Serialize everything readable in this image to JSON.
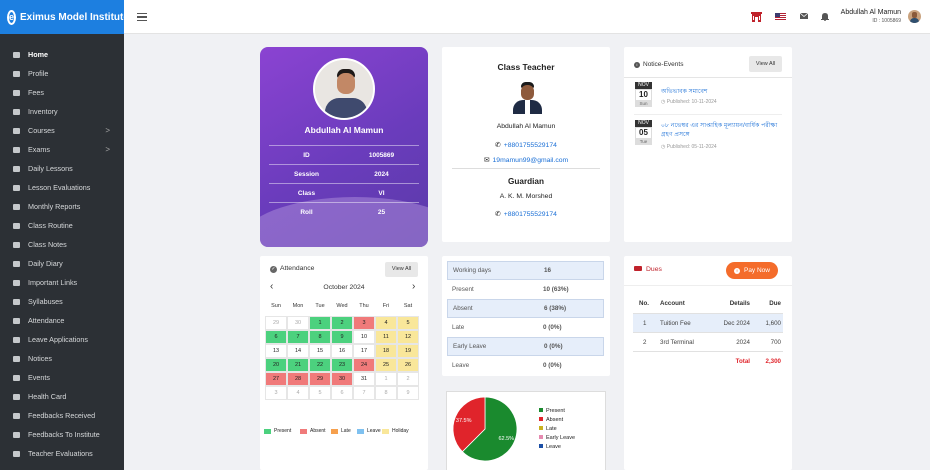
{
  "brand": {
    "title": "Eximus Model Institute",
    "logo_letter": "e"
  },
  "topbar": {
    "user_name": "Abdullah Al Mamun",
    "user_id": "ID : 1005869",
    "icons": [
      "institute-icon",
      "language-flag-icon",
      "message-icon",
      "bell-icon"
    ]
  },
  "sidebar": {
    "items": [
      {
        "label": "Home",
        "icon": "home-icon",
        "active": true
      },
      {
        "label": "Profile",
        "icon": "profile-icon"
      },
      {
        "label": "Fees",
        "icon": "fees-icon"
      },
      {
        "label": "Inventory",
        "icon": "inventory-icon"
      },
      {
        "label": "Courses",
        "icon": "courses-icon",
        "chevron": ">"
      },
      {
        "label": "Exams",
        "icon": "exams-icon",
        "chevron": ">"
      },
      {
        "label": "Daily Lessons",
        "icon": "lessons-icon"
      },
      {
        "label": "Lesson Evaluations",
        "icon": "evaluation-icon"
      },
      {
        "label": "Monthly Reports",
        "icon": "report-icon"
      },
      {
        "label": "Class Routine",
        "icon": "routine-icon"
      },
      {
        "label": "Class Notes",
        "icon": "notes-icon"
      },
      {
        "label": "Daily Diary",
        "icon": "diary-icon"
      },
      {
        "label": "Important Links",
        "icon": "link-icon"
      },
      {
        "label": "Syllabuses",
        "icon": "syllabus-icon"
      },
      {
        "label": "Attendance",
        "icon": "attendance-icon"
      },
      {
        "label": "Leave Applications",
        "icon": "leave-icon"
      },
      {
        "label": "Notices",
        "icon": "notice-icon"
      },
      {
        "label": "Events",
        "icon": "event-icon"
      },
      {
        "label": "Health Card",
        "icon": "health-icon"
      },
      {
        "label": "Feedbacks Received",
        "icon": "feedback-icon"
      },
      {
        "label": "Feedbacks To Institute",
        "icon": "feedback-send-icon"
      },
      {
        "label": "Teacher Evaluations",
        "icon": "teacher-eval-icon"
      }
    ]
  },
  "profile": {
    "name": "Abdullah Al Mamun",
    "rows": [
      {
        "label": "ID",
        "value": "1005869"
      },
      {
        "label": "Session",
        "value": "2024"
      },
      {
        "label": "Class",
        "value": "VI"
      },
      {
        "label": "Roll",
        "value": "25"
      }
    ]
  },
  "teacher": {
    "title": "Class Teacher",
    "name": "Abdullah Al Mamun",
    "phone": "+8801755529174",
    "email": "19mamun99@gmail.com",
    "guardian_title": "Guardian",
    "guardian_name": "A. K. M. Morshed",
    "guardian_phone": "+8801755529174"
  },
  "notice": {
    "title": "Notice-Events",
    "view_all": "View All",
    "items": [
      {
        "month": "NOV",
        "day": "10",
        "weekday": "Sun",
        "title": "অভিভাবক সমাবেশ",
        "published": "Published: 10-11-2024"
      },
      {
        "month": "NOV",
        "day": "05",
        "weekday": "Tue",
        "title": "০৮ নভেম্বর এর সাপ্তাহিক মূল্যায়ন/বার্ষিক পরীক্ষা গ্রহণ প্রসঙ্গে",
        "published": "Published: 05-11-2024"
      }
    ]
  },
  "attendance": {
    "title": "Attendance",
    "view_all": "View All",
    "month": "October 2024",
    "prev": "‹",
    "next": "›",
    "weekdays": [
      "Sun",
      "Mon",
      "Tue",
      "Wed",
      "Thu",
      "Fri",
      "Sat"
    ],
    "weeks": [
      [
        [
          "29",
          "out"
        ],
        [
          "30",
          "out"
        ],
        [
          "1",
          "present"
        ],
        [
          "2",
          "present"
        ],
        [
          "3",
          "absent"
        ],
        [
          "4",
          "holiday"
        ],
        [
          "5",
          "holiday"
        ]
      ],
      [
        [
          "6",
          "present"
        ],
        [
          "7",
          "present"
        ],
        [
          "8",
          "present"
        ],
        [
          "9",
          "present"
        ],
        [
          "10",
          ""
        ],
        [
          "11",
          "holiday"
        ],
        [
          "12",
          "holiday"
        ]
      ],
      [
        [
          "13",
          ""
        ],
        [
          "14",
          ""
        ],
        [
          "15",
          ""
        ],
        [
          "16",
          ""
        ],
        [
          "17",
          ""
        ],
        [
          "18",
          "holiday"
        ],
        [
          "19",
          "holiday"
        ]
      ],
      [
        [
          "20",
          "present"
        ],
        [
          "21",
          "present"
        ],
        [
          "22",
          "present"
        ],
        [
          "23",
          "present"
        ],
        [
          "24",
          "absent"
        ],
        [
          "25",
          "holiday"
        ],
        [
          "26",
          "holiday"
        ]
      ],
      [
        [
          "27",
          "absent"
        ],
        [
          "28",
          "absent"
        ],
        [
          "29",
          "absent"
        ],
        [
          "30",
          "absent"
        ],
        [
          "31",
          ""
        ],
        [
          "1",
          "out"
        ],
        [
          "2",
          "out"
        ]
      ],
      [
        [
          "3",
          "out"
        ],
        [
          "4",
          "out"
        ],
        [
          "5",
          "out"
        ],
        [
          "6",
          "out"
        ],
        [
          "7",
          "out"
        ],
        [
          "8",
          "out"
        ],
        [
          "9",
          "out"
        ]
      ]
    ],
    "legend": [
      {
        "label": "Present",
        "color": "#4cd17e"
      },
      {
        "label": "Absent",
        "color": "#f07a7a"
      },
      {
        "label": "Late",
        "color": "#f6a04d"
      },
      {
        "label": "Leave",
        "color": "#7fc1f0"
      },
      {
        "label": "Holiday",
        "color": "#f9e79a"
      }
    ]
  },
  "summary": {
    "rows": [
      {
        "label": "Working days",
        "value": "16"
      },
      {
        "label": "Present",
        "value": "10 (63%)"
      },
      {
        "label": "Absent",
        "value": "6 (38%)"
      },
      {
        "label": "Late",
        "value": "0 (0%)"
      },
      {
        "label": "Early Leave",
        "value": "0 (0%)"
      },
      {
        "label": "Leave",
        "value": "0 (0%)"
      }
    ]
  },
  "chart_data": {
    "type": "pie",
    "slices": [
      {
        "name": "Present",
        "value": 62.5,
        "label": "62.5%",
        "color": "#1a8a2e"
      },
      {
        "name": "Absent",
        "value": 37.5,
        "label": "37.5%",
        "color": "#e0242b"
      },
      {
        "name": "Late",
        "value": 0,
        "color": "#c9b21f"
      },
      {
        "name": "Early Leave",
        "value": 0,
        "color": "#e68ab0"
      },
      {
        "name": "Leave",
        "value": 0,
        "color": "#1c4fa6"
      }
    ],
    "legend_position": "right"
  },
  "dues": {
    "title": "Dues",
    "pay_now": "Pay Now",
    "columns": [
      "No.",
      "Account",
      "Details",
      "Due"
    ],
    "rows": [
      {
        "no": "1",
        "account": "Tuition Fee",
        "details": "Dec 2024",
        "due": "1,600"
      },
      {
        "no": "2",
        "account": "3rd Terminal",
        "details": "2024",
        "due": "700"
      }
    ],
    "total_label": "Total",
    "total": "2,300"
  }
}
